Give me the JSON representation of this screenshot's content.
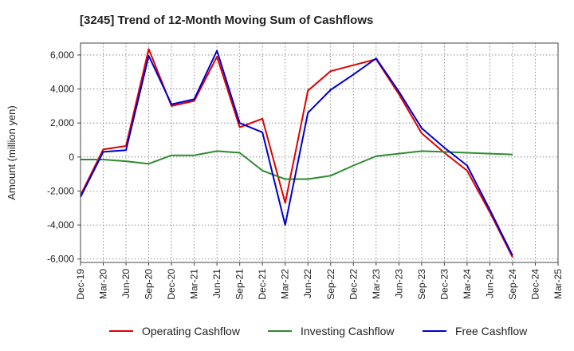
{
  "chart_data": {
    "type": "line",
    "title": "[3245]  Trend of 12-Month Moving Sum of Cashflows",
    "xlabel": "",
    "ylabel": "Amount (million yen)",
    "ylim": [
      -6200,
      6700
    ],
    "yticks": [
      6000,
      4000,
      2000,
      0,
      -2000,
      -4000,
      -6000
    ],
    "ytick_labels": [
      "6,000",
      "4,000",
      "2,000",
      "0",
      "-2,000",
      "-4,000",
      "-6,000"
    ],
    "categories": [
      "Dec-19",
      "Mar-20",
      "Jun-20",
      "Sep-20",
      "Dec-20",
      "Mar-21",
      "Jun-21",
      "Sep-21",
      "Dec-21",
      "Mar-22",
      "Jun-22",
      "Sep-22",
      "Dec-22",
      "Mar-23",
      "Jun-23",
      "Sep-23",
      "Dec-23",
      "Mar-24",
      "Jun-24",
      "Sep-24",
      "Dec-24",
      "Mar-25"
    ],
    "grid": true,
    "legend_position": "bottom",
    "series": [
      {
        "name": "Operating Cashflow",
        "color": "#e00000",
        "values": [
          -2250,
          450,
          650,
          6350,
          3000,
          3300,
          5900,
          1750,
          2250,
          -2700,
          3900,
          5050,
          5400,
          5750,
          3700,
          1400,
          250,
          -800,
          -3250,
          -5900,
          null,
          null
        ]
      },
      {
        "name": "Investing Cashflow",
        "color": "#2e8b2e",
        "values": [
          -150,
          -150,
          -250,
          -400,
          100,
          100,
          350,
          250,
          -800,
          -1300,
          -1300,
          -1100,
          -500,
          50,
          200,
          350,
          300,
          250,
          200,
          150,
          null,
          null
        ]
      },
      {
        "name": "Free Cashflow",
        "color": "#0000cc",
        "values": [
          -2350,
          300,
          400,
          5950,
          3100,
          3400,
          6250,
          2000,
          1450,
          -4000,
          2600,
          3950,
          4850,
          5800,
          3850,
          1700,
          550,
          -500,
          -3100,
          -5800,
          null,
          null
        ]
      }
    ]
  }
}
